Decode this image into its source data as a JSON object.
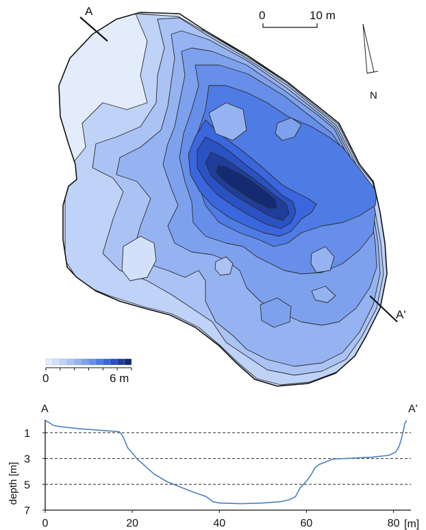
{
  "map": {
    "section_start_label": "A",
    "section_end_label": "A'",
    "scale_bar": {
      "zero_label": "0",
      "length_label": "10 m"
    },
    "north_label": "N",
    "depth_legend": {
      "min_label": "0",
      "max_label": "6 m",
      "colors": [
        "#e3ecfb",
        "#d2e0fa",
        "#bfd2f7",
        "#abc3f4",
        "#95b3f1",
        "#7ea1ee",
        "#678fe9",
        "#4f7be4",
        "#3a66de",
        "#2a52c2",
        "#1f3e9c",
        "#142b72"
      ]
    }
  },
  "chart_data": {
    "type": "line",
    "title": "",
    "xlabel": "",
    "x_unit_label": "[m]",
    "ylabel": "depth [m]",
    "start_label": "A",
    "end_label": "A'",
    "xlim": [
      0,
      84
    ],
    "ylim": [
      0,
      7
    ],
    "y_inverted": true,
    "xticks": [
      0,
      20,
      40,
      60,
      80
    ],
    "yticks": [
      1,
      3,
      5,
      7
    ],
    "gridlines_y": [
      1,
      3,
      5
    ],
    "series": [
      {
        "x": [
          0,
          1,
          2,
          4,
          8,
          12,
          15,
          17,
          17.5,
          18,
          18.5,
          19,
          20,
          21,
          23,
          25,
          28,
          31,
          34,
          37,
          38.5,
          40,
          45,
          50,
          54,
          56,
          57.5,
          58.5,
          60,
          61,
          62,
          63,
          66,
          70,
          75,
          79,
          80.5,
          81.3,
          81.8,
          82.2,
          82.6,
          83
        ],
        "y": [
          0.05,
          0.25,
          0.45,
          0.55,
          0.7,
          0.8,
          0.87,
          0.93,
          1.1,
          1.4,
          1.8,
          2.2,
          2.55,
          3.0,
          3.6,
          4.2,
          4.8,
          5.2,
          5.6,
          5.95,
          6.35,
          6.45,
          6.5,
          6.45,
          6.35,
          6.2,
          5.95,
          5.3,
          4.75,
          4.3,
          3.7,
          3.45,
          3.05,
          2.98,
          2.9,
          2.75,
          2.5,
          2.05,
          1.5,
          0.9,
          0.3,
          0.05
        ],
        "color": "#4a7fc0"
      }
    ]
  }
}
